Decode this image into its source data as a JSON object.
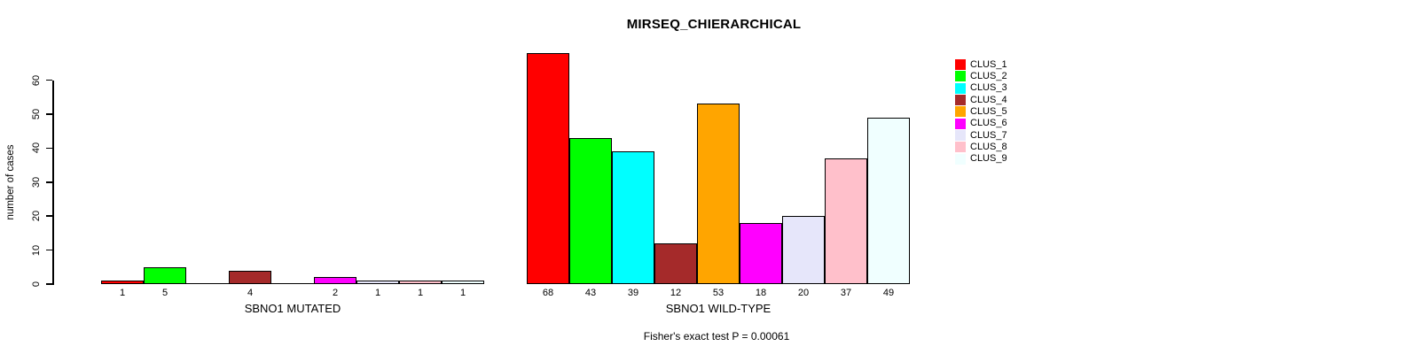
{
  "chart_data": {
    "type": "bar",
    "title": "MIRSEQ_CHIERARCHICAL",
    "ylabel": "number of cases",
    "xlabel": "",
    "categories": [
      "SBNO1 MUTATED",
      "SBNO1 WILD-TYPE"
    ],
    "series": [
      {
        "name": "CLUS_1",
        "color": "#FF0000",
        "values": [
          1,
          68
        ]
      },
      {
        "name": "CLUS_2",
        "color": "#00FF00",
        "values": [
          5,
          43
        ]
      },
      {
        "name": "CLUS_3",
        "color": "#00FFFF",
        "values": [
          0,
          39
        ]
      },
      {
        "name": "CLUS_4",
        "color": "#A52A2A",
        "values": [
          4,
          12
        ]
      },
      {
        "name": "CLUS_5",
        "color": "#FFA500",
        "values": [
          0,
          53
        ]
      },
      {
        "name": "CLUS_6",
        "color": "#FF00FF",
        "values": [
          2,
          18
        ]
      },
      {
        "name": "CLUS_7",
        "color": "#E6E6FA",
        "values": [
          1,
          20
        ]
      },
      {
        "name": "CLUS_8",
        "color": "#FFC0CB",
        "values": [
          1,
          37
        ]
      },
      {
        "name": "CLUS_9",
        "color": "#F0FFFF",
        "values": [
          1,
          49
        ]
      }
    ],
    "yticks": [
      0,
      10,
      20,
      30,
      40,
      50,
      60
    ],
    "ylim": [
      0,
      68
    ],
    "grid": false,
    "legend_position": "right-outside-top",
    "bar_value_labels": "value printed under each nonzero bar; zero bars drawn as flat baseline segment with no label",
    "annotation": "Fisher's exact test P = 0.00061"
  }
}
